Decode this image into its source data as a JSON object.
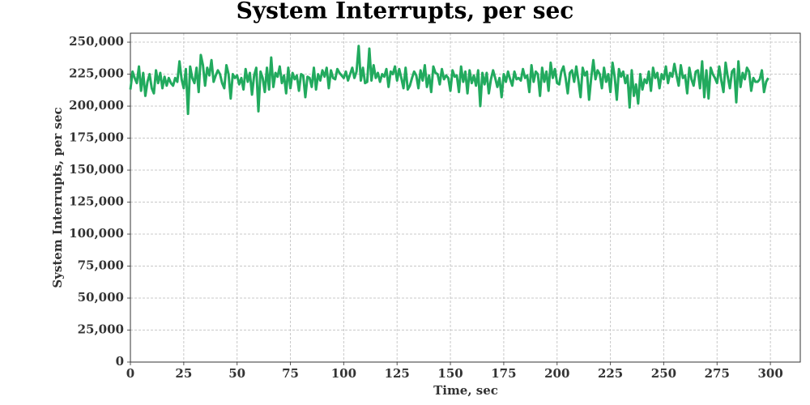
{
  "chart_data": {
    "type": "line",
    "title": "System Interrupts, per sec",
    "x_label": "Time, sec",
    "y_label": "System Interrupts, per sec",
    "xlim": [
      0,
      314
    ],
    "ylim": [
      0,
      257000
    ],
    "xticks": [
      0,
      25,
      50,
      75,
      100,
      125,
      150,
      175,
      200,
      225,
      250,
      275,
      300
    ],
    "yticks": [
      0,
      {
        "value": 25000,
        "label": "25,000"
      },
      {
        "value": 50000,
        "label": "50,000"
      },
      {
        "value": 75000,
        "label": "75,000"
      },
      {
        "value": 100000,
        "label": "100,000"
      },
      {
        "value": 125000,
        "label": "125,000"
      },
      {
        "value": 150000,
        "label": "150,000"
      },
      {
        "value": 175000,
        "label": "175,000"
      },
      {
        "value": 200000,
        "label": "200,000"
      },
      {
        "value": 225000,
        "label": "225,000"
      },
      {
        "value": 250000,
        "label": "250,000"
      }
    ],
    "grid": true,
    "x": [
      0,
      1,
      2,
      3,
      4,
      5,
      6,
      7,
      8,
      9,
      10,
      11,
      12,
      13,
      14,
      15,
      16,
      17,
      18,
      19,
      20,
      21,
      22,
      23,
      24,
      25,
      26,
      27,
      28,
      29,
      30,
      31,
      32,
      33,
      34,
      35,
      36,
      37,
      38,
      39,
      40,
      41,
      42,
      43,
      44,
      45,
      46,
      47,
      48,
      49,
      50,
      51,
      52,
      53,
      54,
      55,
      56,
      57,
      58,
      59,
      60,
      61,
      62,
      63,
      64,
      65,
      66,
      67,
      68,
      69,
      70,
      71,
      72,
      73,
      74,
      75,
      76,
      77,
      78,
      79,
      80,
      81,
      82,
      83,
      84,
      85,
      86,
      87,
      88,
      89,
      90,
      91,
      92,
      93,
      94,
      95,
      96,
      97,
      98,
      99,
      100,
      101,
      102,
      103,
      104,
      105,
      106,
      107,
      108,
      109,
      110,
      111,
      112,
      113,
      114,
      115,
      116,
      117,
      118,
      119,
      120,
      121,
      122,
      123,
      124,
      125,
      126,
      127,
      128,
      129,
      130,
      131,
      132,
      133,
      134,
      135,
      136,
      137,
      138,
      139,
      140,
      141,
      142,
      143,
      144,
      145,
      146,
      147,
      148,
      149,
      150,
      151,
      152,
      153,
      154,
      155,
      156,
      157,
      158,
      159,
      160,
      161,
      162,
      163,
      164,
      165,
      166,
      167,
      168,
      169,
      170,
      171,
      172,
      173,
      174,
      175,
      176,
      177,
      178,
      179,
      180,
      181,
      182,
      183,
      184,
      185,
      186,
      187,
      188,
      189,
      190,
      191,
      192,
      193,
      194,
      195,
      196,
      197,
      198,
      199,
      200,
      201,
      202,
      203,
      204,
      205,
      206,
      207,
      208,
      209,
      210,
      211,
      212,
      213,
      214,
      215,
      216,
      217,
      218,
      219,
      220,
      221,
      222,
      223,
      224,
      225,
      226,
      227,
      228,
      229,
      230,
      231,
      232,
      233,
      234,
      235,
      236,
      237,
      238,
      239,
      240,
      241,
      242,
      243,
      244,
      245,
      246,
      247,
      248,
      249,
      250,
      251,
      252,
      253,
      254,
      255,
      256,
      257,
      258,
      259,
      260,
      261,
      262,
      263,
      264,
      265,
      266,
      267,
      268,
      269,
      270,
      271,
      272,
      273,
      274,
      275,
      276,
      277,
      278,
      279,
      280,
      281,
      282,
      283,
      284,
      285,
      286,
      287,
      288,
      289,
      290,
      291,
      292,
      293,
      294,
      295,
      296,
      297,
      298,
      299
    ],
    "series": [
      {
        "color": "#22aa5e",
        "values": [
          213000,
          227000,
          222000,
          218000,
          231000,
          212000,
          226000,
          208000,
          219000,
          225000,
          214000,
          210000,
          228000,
          218000,
          226000,
          214000,
          223000,
          216000,
          222000,
          218000,
          216000,
          222000,
          219000,
          235000,
          221000,
          214000,
          229000,
          194000,
          231000,
          222000,
          218000,
          230000,
          211000,
          240000,
          232000,
          216000,
          230000,
          224000,
          236000,
          219000,
          224000,
          228000,
          225000,
          218000,
          214000,
          232000,
          225000,
          206000,
          225000,
          222000,
          224000,
          217000,
          222000,
          213000,
          229000,
          219000,
          226000,
          209000,
          224000,
          230000,
          196000,
          227000,
          222000,
          211000,
          230000,
          213000,
          238000,
          215000,
          226000,
          223000,
          231000,
          218000,
          224000,
          210000,
          230000,
          214000,
          226000,
          221000,
          224000,
          212000,
          225000,
          224000,
          207000,
          223000,
          222000,
          215000,
          230000,
          213000,
          225000,
          220000,
          228000,
          223000,
          230000,
          214000,
          228000,
          222000,
          221000,
          229000,
          226000,
          224000,
          222000,
          227000,
          220000,
          225000,
          230000,
          222000,
          227000,
          247000,
          220000,
          230000,
          218000,
          219000,
          245000,
          220000,
          232000,
          222000,
          226000,
          219000,
          225000,
          223000,
          229000,
          215000,
          227000,
          225000,
          231000,
          220000,
          229000,
          222000,
          214000,
          230000,
          213000,
          216000,
          222000,
          227000,
          224000,
          214000,
          228000,
          220000,
          232000,
          215000,
          224000,
          211000,
          231000,
          226000,
          225000,
          217000,
          229000,
          221000,
          224000,
          222000,
          212000,
          228000,
          223000,
          224000,
          211000,
          231000,
          219000,
          227000,
          210000,
          228000,
          218000,
          224000,
          216000,
          228000,
          200000,
          226000,
          217000,
          226000,
          210000,
          221000,
          228000,
          222000,
          215000,
          222000,
          207000,
          225000,
          219000,
          227000,
          221000,
          216000,
          227000,
          221000,
          222000,
          220000,
          229000,
          222000,
          224000,
          211000,
          232000,
          219000,
          227000,
          225000,
          208000,
          230000,
          219000,
          227000,
          212000,
          234000,
          222000,
          229000,
          218000,
          217000,
          227000,
          231000,
          222000,
          210000,
          226000,
          228000,
          219000,
          231000,
          220000,
          207000,
          230000,
          224000,
          227000,
          205000,
          222000,
          236000,
          221000,
          228000,
          225000,
          214000,
          230000,
          219000,
          225000,
          211000,
          234000,
          223000,
          205000,
          229000,
          223000,
          227000,
          218000,
          224000,
          199000,
          228000,
          208000,
          217000,
          202000,
          225000,
          213000,
          221000,
          218000,
          227000,
          212000,
          230000,
          222000,
          226000,
          214000,
          225000,
          221000,
          231000,
          218000,
          226000,
          223000,
          233000,
          224000,
          216000,
          232000,
          222000,
          224000,
          210000,
          230000,
          221000,
          216000,
          227000,
          228000,
          214000,
          235000,
          207000,
          228000,
          206000,
          230000,
          225000,
          222000,
          218000,
          231000,
          220000,
          211000,
          234000,
          223000,
          214000,
          227000,
          229000,
          203000,
          235000,
          215000,
          226000,
          221000,
          230000,
          227000,
          212000,
          222000,
          219000,
          219000,
          221000,
          228000,
          211000,
          219000,
          222000
        ]
      }
    ]
  }
}
